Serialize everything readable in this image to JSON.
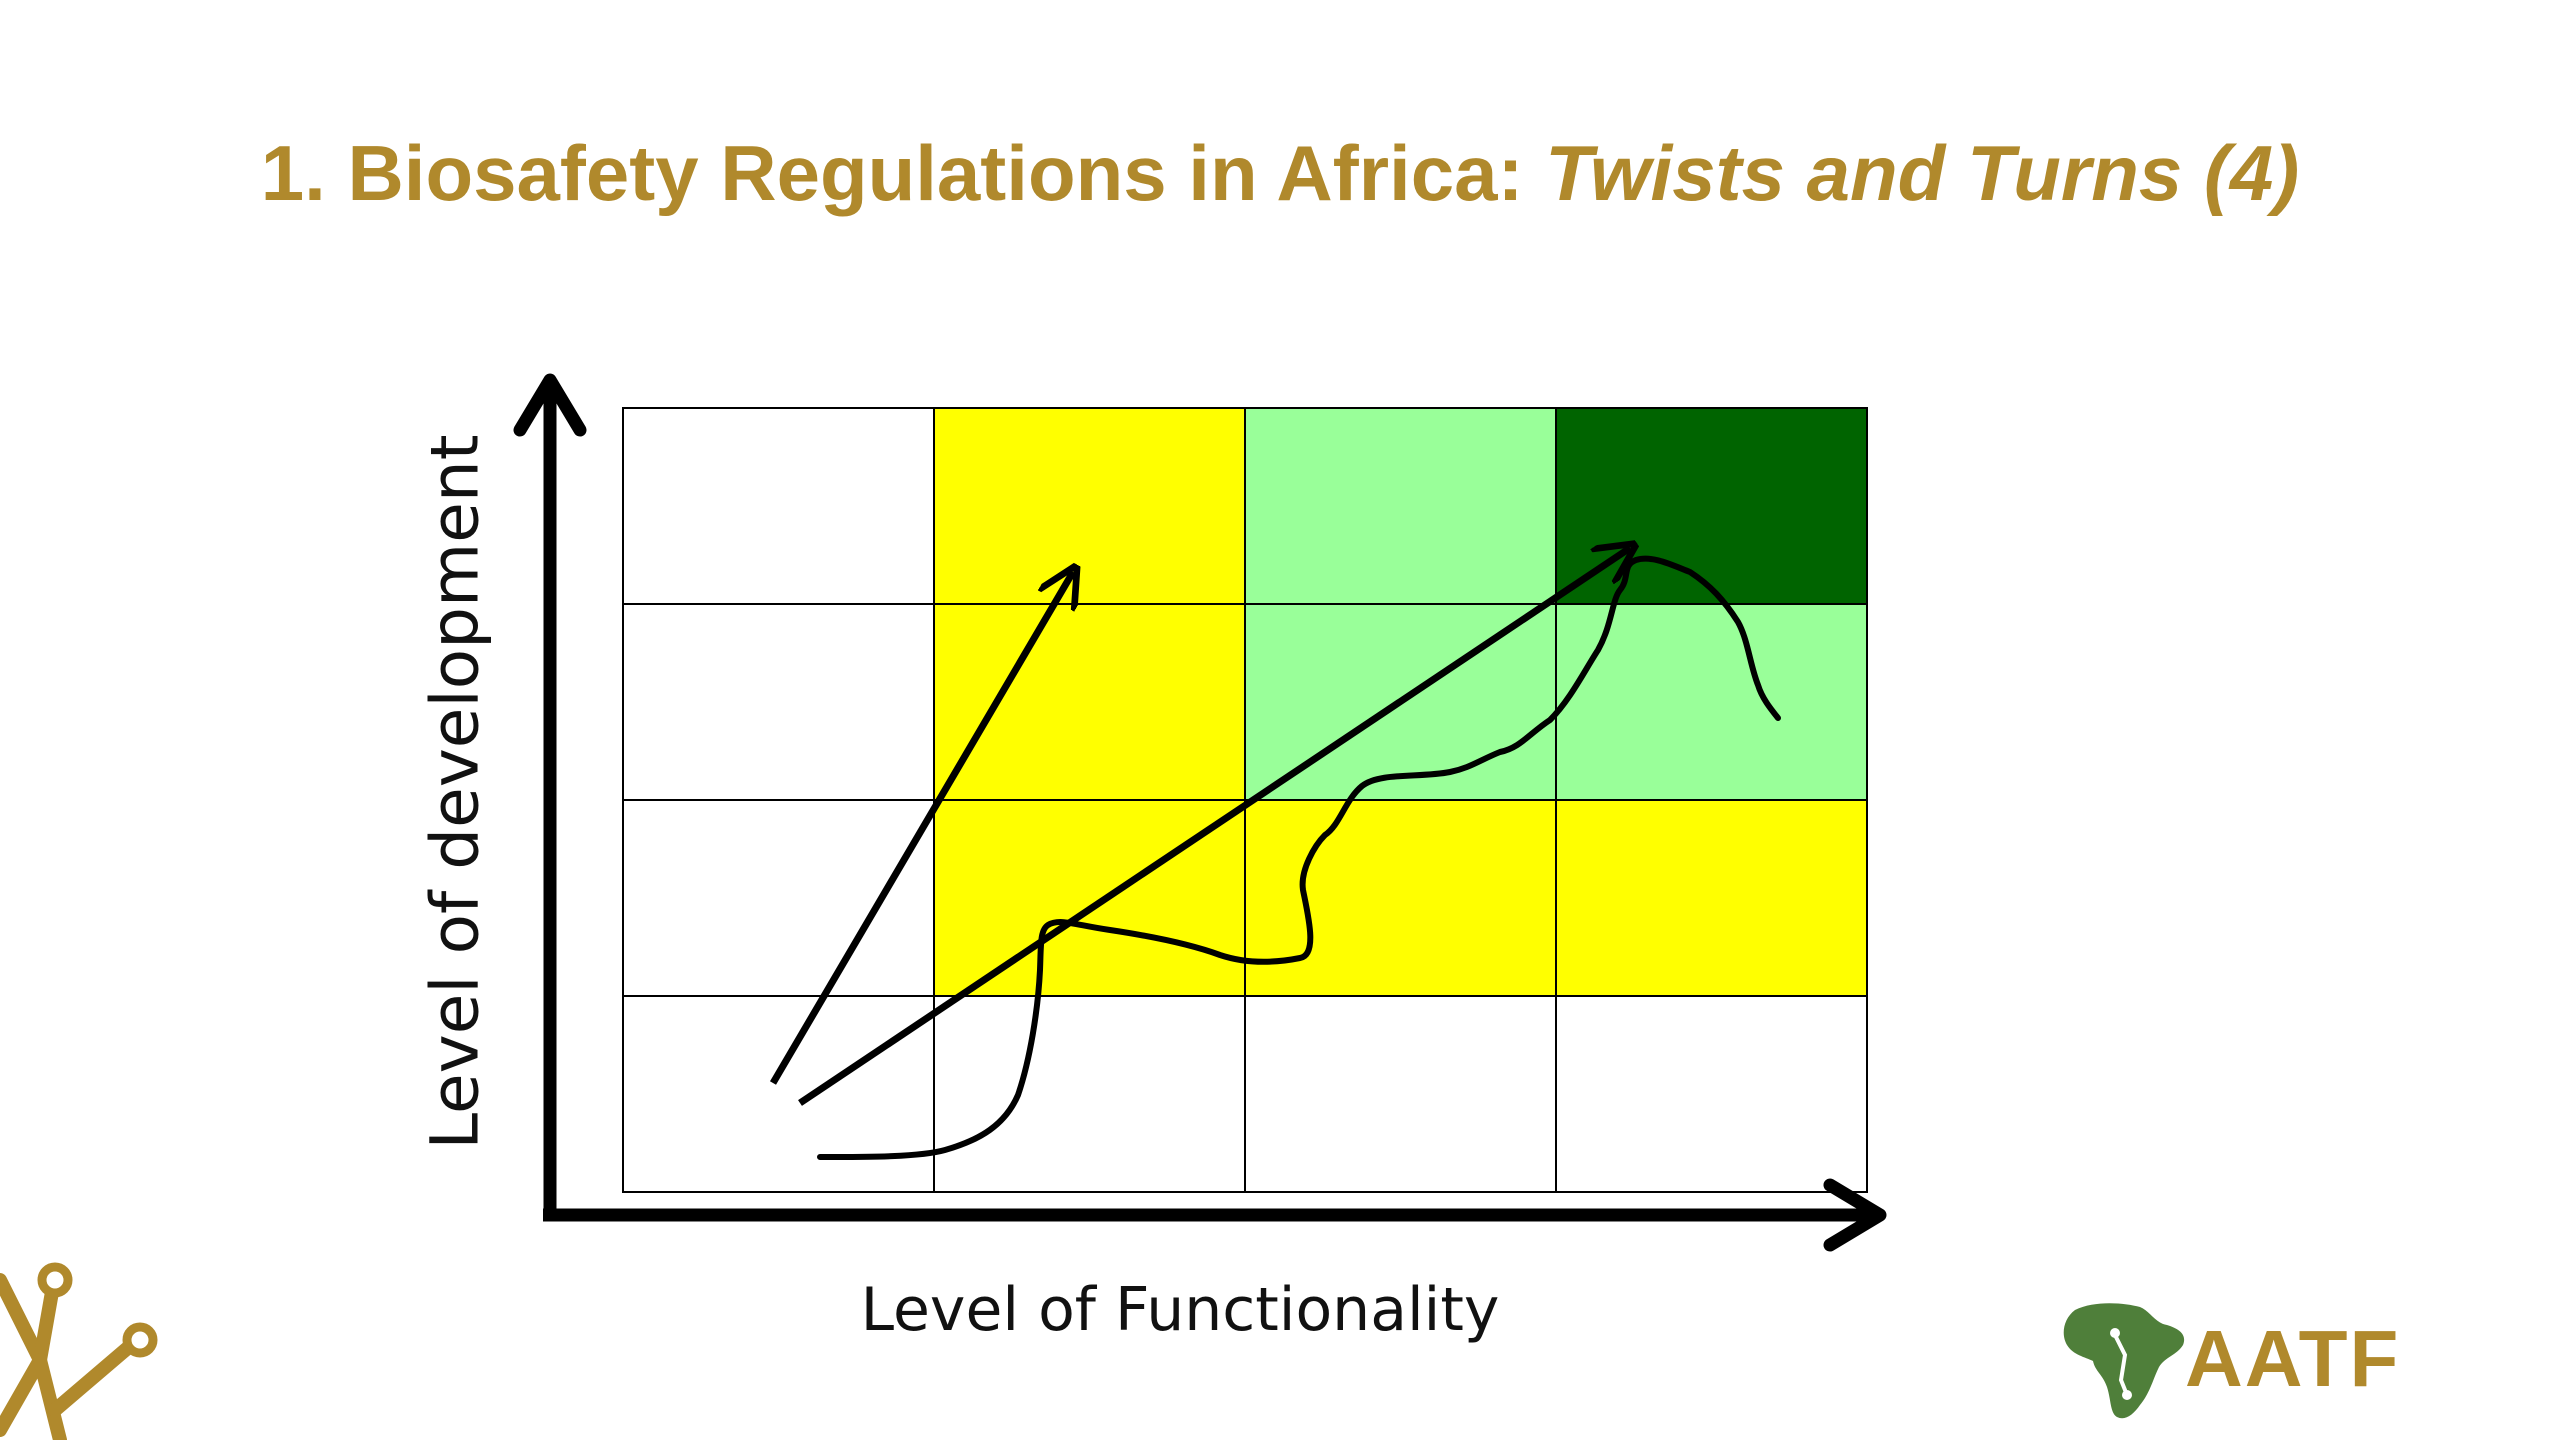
{
  "title": {
    "prefix": "1. Biosafety Regulations in Africa: ",
    "emphasis": "Twists and Turns (4)"
  },
  "axes": {
    "y_label": "Level of development",
    "x_label": "Level of Functionality"
  },
  "grid": {
    "rows": 4,
    "cols": 4,
    "cell_colors_top_to_bottom": [
      [
        "#ffffff",
        "#ffff00",
        "#99ff99",
        "#006400"
      ],
      [
        "#ffffff",
        "#ffff00",
        "#99ff99",
        "#99ff99"
      ],
      [
        "#ffffff",
        "#ffff00",
        "#ffff00",
        "#ffff00"
      ],
      [
        "#ffffff",
        "#ffffff",
        "#ffffff",
        "#ffffff"
      ]
    ]
  },
  "colors": {
    "title": "#b0892c",
    "yellow": "#ffff00",
    "light_green": "#99ff99",
    "dark_green": "#006400",
    "lines": "#000000"
  },
  "brand": {
    "logo_text": "AATF",
    "logo_icon": "africa-map-icon",
    "corner_icon": "tree-branch-icon"
  }
}
